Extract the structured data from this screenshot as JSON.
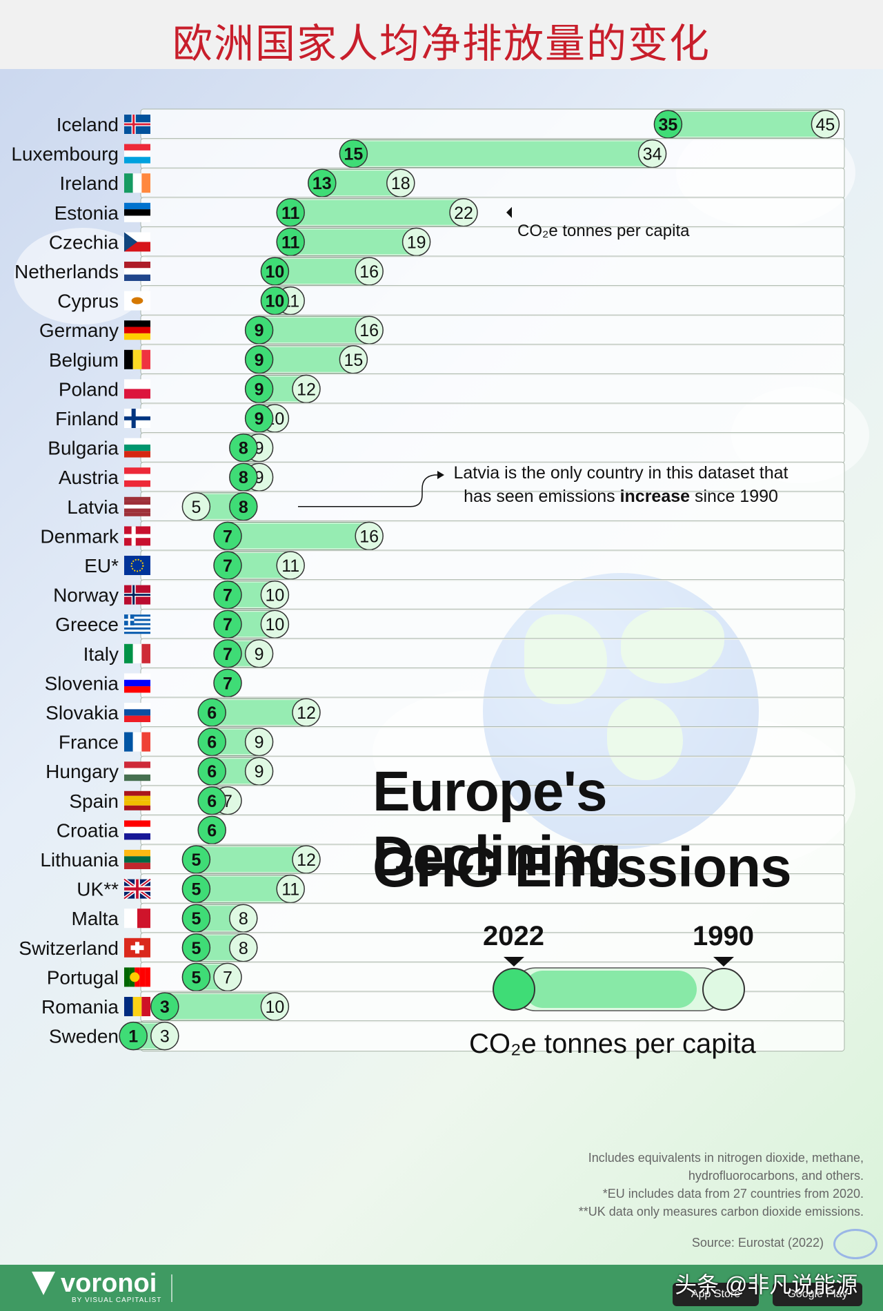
{
  "top_title": "欧洲国家人均净排放量的变化",
  "headline": {
    "line1": "Europe's Declining",
    "line2": "GHG Emissions"
  },
  "legend": {
    "year_2022": "2022",
    "year_1990": "1990",
    "units": "CO₂e tonnes per capita"
  },
  "annotations": {
    "co2_label": "CO₂e tonnes per capita",
    "latvia_note_part1": "Latvia is the only country in this dataset that has seen emissions",
    "latvia_note_bold": "increase",
    "latvia_note_part2": "since 1990"
  },
  "notes": [
    "Includes equivalents in nitrogen dioxide, methane,",
    "hydrofluorocarbons, and others.",
    "*EU includes data from 27 countries from 2020.",
    "**UK data only measures carbon dioxide emissions."
  ],
  "source": "Source: Eurostat (2022)",
  "footer": {
    "brand": "voronoi",
    "brand_sub": "BY VISUAL CAPITALIST",
    "watermark": "头条 @非凡说能源",
    "app_store": "App Store",
    "google_play": "Google Play"
  },
  "colors": {
    "accent_green": "#3fdc76",
    "light_green": "#dff9e3",
    "title_red": "#c81e2b",
    "footer_green": "#3f9a62"
  },
  "chart_data": {
    "type": "bar",
    "title": "Europe's Declining GHG Emissions",
    "subtitle": "CO₂e tonnes per capita",
    "series": [
      {
        "name": "2022"
      },
      {
        "name": "1990"
      }
    ],
    "rows": [
      {
        "country": "Iceland",
        "v2022": 35,
        "v1990": 45,
        "flag": "iceland"
      },
      {
        "country": "Luxembourg",
        "v2022": 15,
        "v1990": 34,
        "flag": "luxembourg"
      },
      {
        "country": "Ireland",
        "v2022": 13,
        "v1990": 18,
        "flag": "ireland"
      },
      {
        "country": "Estonia",
        "v2022": 11,
        "v1990": 22,
        "flag": "estonia"
      },
      {
        "country": "Czechia",
        "v2022": 11,
        "v1990": 19,
        "flag": "czechia"
      },
      {
        "country": "Netherlands",
        "v2022": 10,
        "v1990": 16,
        "flag": "netherlands"
      },
      {
        "country": "Cyprus",
        "v2022": 10,
        "v1990": 11,
        "flag": "cyprus"
      },
      {
        "country": "Germany",
        "v2022": 9,
        "v1990": 16,
        "flag": "germany"
      },
      {
        "country": "Belgium",
        "v2022": 9,
        "v1990": 15,
        "flag": "belgium"
      },
      {
        "country": "Poland",
        "v2022": 9,
        "v1990": 12,
        "flag": "poland"
      },
      {
        "country": "Finland",
        "v2022": 9,
        "v1990": 10,
        "flag": "finland"
      },
      {
        "country": "Bulgaria",
        "v2022": 8,
        "v1990": 9,
        "flag": "bulgaria"
      },
      {
        "country": "Austria",
        "v2022": 8,
        "v1990": 9,
        "flag": "austria"
      },
      {
        "country": "Latvia",
        "v2022": 8,
        "v1990": 5,
        "flag": "latvia"
      },
      {
        "country": "Denmark",
        "v2022": 7,
        "v1990": 16,
        "flag": "denmark"
      },
      {
        "country": "EU*",
        "v2022": 7,
        "v1990": 11,
        "flag": "eu"
      },
      {
        "country": "Norway",
        "v2022": 7,
        "v1990": 10,
        "flag": "norway"
      },
      {
        "country": "Greece",
        "v2022": 7,
        "v1990": 10,
        "flag": "greece"
      },
      {
        "country": "Italy",
        "v2022": 7,
        "v1990": 9,
        "flag": "italy"
      },
      {
        "country": "Slovenia",
        "v2022": 7,
        "v1990": 7,
        "flag": "slovenia"
      },
      {
        "country": "Slovakia",
        "v2022": 6,
        "v1990": 12,
        "flag": "slovakia"
      },
      {
        "country": "France",
        "v2022": 6,
        "v1990": 9,
        "flag": "france"
      },
      {
        "country": "Hungary",
        "v2022": 6,
        "v1990": 9,
        "flag": "hungary"
      },
      {
        "country": "Spain",
        "v2022": 6,
        "v1990": 7,
        "flag": "spain"
      },
      {
        "country": "Croatia",
        "v2022": 6,
        "v1990": 6,
        "flag": "croatia"
      },
      {
        "country": "Lithuania",
        "v2022": 5,
        "v1990": 12,
        "flag": "lithuania"
      },
      {
        "country": "UK**",
        "v2022": 5,
        "v1990": 11,
        "flag": "uk"
      },
      {
        "country": "Malta",
        "v2022": 5,
        "v1990": 8,
        "flag": "malta"
      },
      {
        "country": "Switzerland",
        "v2022": 5,
        "v1990": 8,
        "flag": "switzerland"
      },
      {
        "country": "Portugal",
        "v2022": 5,
        "v1990": 7,
        "flag": "portugal"
      },
      {
        "country": "Romania",
        "v2022": 3,
        "v1990": 10,
        "flag": "romania"
      },
      {
        "country": "Sweden",
        "v2022": 1,
        "v1990": 3,
        "flag": "sweden"
      }
    ]
  }
}
